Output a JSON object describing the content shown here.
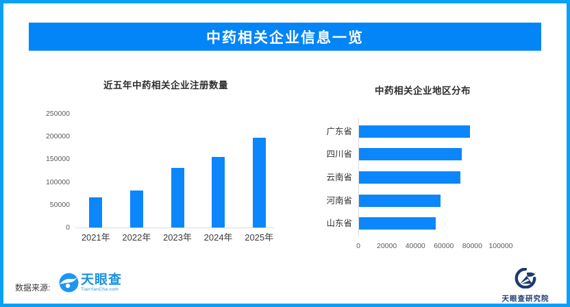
{
  "page": {
    "border_color": "#0aa0f5",
    "background": "#ffffff"
  },
  "header": {
    "title": "中药相关企业信息一览",
    "bg_color": "#0385f8",
    "text_color": "#ffffff"
  },
  "footer": {
    "source_label": "数据来源:",
    "tyc_logo": {
      "name": "天眼查",
      "subtext": "TianYanCha.com",
      "color": "#1b91e0"
    },
    "institute_logo": {
      "name": "天眼查研究院",
      "color": "#1d3b70"
    }
  },
  "chart_data": [
    {
      "id": "registrations",
      "type": "bar",
      "orientation": "vertical",
      "title": "近五年中药相关企业注册数量",
      "categories": [
        "2021年",
        "2022年",
        "2023年",
        "2024年",
        "2025年"
      ],
      "values": [
        66000,
        82000,
        131000,
        155000,
        197000
      ],
      "xlabel": "",
      "ylabel": "",
      "ylim": [
        0,
        250000
      ],
      "yticks": [
        0,
        50000,
        100000,
        150000,
        200000,
        250000
      ],
      "bar_color": "#0b86fb",
      "grid": false,
      "legend": false
    },
    {
      "id": "region-distribution",
      "type": "bar",
      "orientation": "horizontal",
      "title": "中药相关企业地区分布",
      "categories": [
        "广东省",
        "四川省",
        "云南省",
        "河南省",
        "山东省"
      ],
      "values": [
        78000,
        72000,
        71000,
        57000,
        54000
      ],
      "xlabel": "",
      "ylabel": "",
      "xlim": [
        0,
        100000
      ],
      "xticks": [
        0,
        20000,
        40000,
        60000,
        80000,
        100000
      ],
      "bar_color": "#0b86fb",
      "grid": false,
      "legend": false
    }
  ]
}
